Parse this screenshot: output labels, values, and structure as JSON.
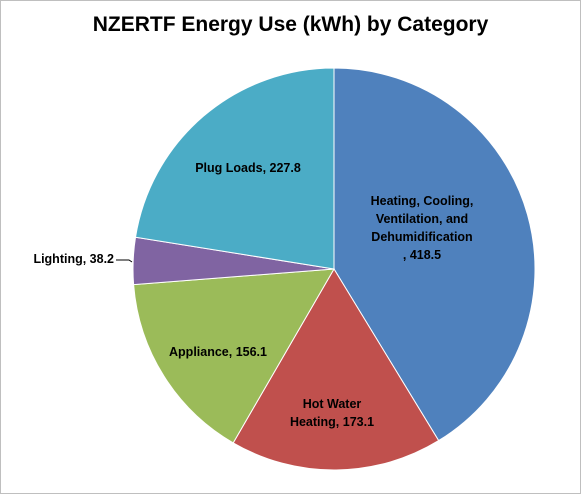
{
  "chart_data": {
    "type": "pie",
    "title": "NZERTF Energy Use (kWh) by Category",
    "slices": [
      {
        "label": "Heating, Cooling, Ventilation, and Dehumidification",
        "value": 418.5,
        "value_text": "418.5",
        "color": "#4F81BD"
      },
      {
        "label": "Hot Water Heating",
        "value": 173.1,
        "value_text": "173.1",
        "color": "#C0504D"
      },
      {
        "label": "Appliance",
        "value": 156.1,
        "value_text": "156.1",
        "color": "#9BBB59"
      },
      {
        "label": "Lighting",
        "value": 38.2,
        "value_text": "38.2",
        "color": "#8064A2"
      },
      {
        "label": "Plug Loads",
        "value": 227.8,
        "value_text": "227.8",
        "color": "#4BACC6"
      }
    ],
    "start_position": "12 o'clock",
    "direction": "clockwise",
    "legend": "none",
    "data_labels": "category name, value"
  }
}
